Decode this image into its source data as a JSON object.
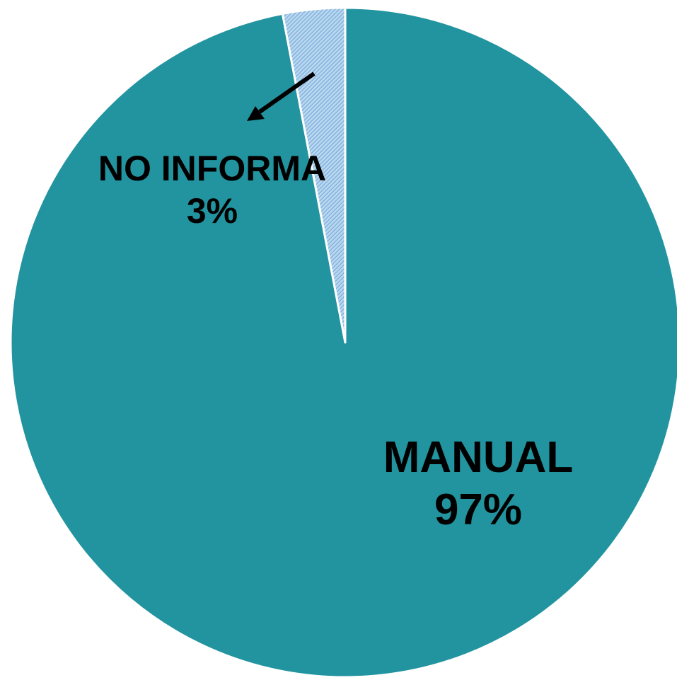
{
  "chart_data": {
    "type": "pie",
    "title": "",
    "start_angle": "12 o'clock",
    "direction": "clockwise",
    "slices": [
      {
        "label": "MANUAL",
        "value": 97,
        "percent_label": "97%",
        "color": "#2294a0",
        "fill": "solid"
      },
      {
        "label": "NO INFORMA",
        "value": 3,
        "percent_label": "3%",
        "color": "#b9d7ef",
        "fill": "diagonal-hatch",
        "hatch_color": "#4f8fce"
      }
    ],
    "slice_border_color": "#ffffff",
    "legend": "none",
    "label_leader": "arrow"
  }
}
